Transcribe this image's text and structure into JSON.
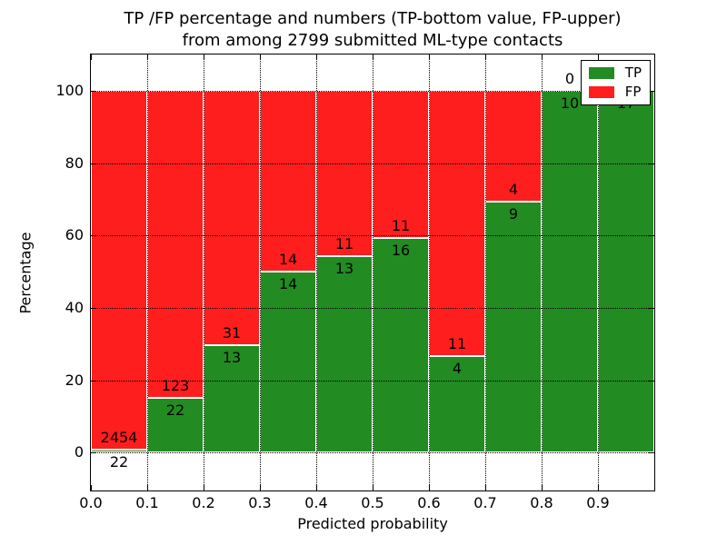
{
  "chart_data": {
    "type": "bar",
    "stacked": true,
    "title_line1": "TP /FP percentage and numbers (TP-bottom value, FP-upper)",
    "title_line2": "from among 2799 submitted ML-type contacts",
    "total_submitted_contacts": 2799,
    "xlabel": "Predicted probability",
    "ylabel": "Percentage",
    "xlim": [
      0.0,
      1.0
    ],
    "ylim": [
      -10.5,
      110
    ],
    "yticks": [
      0,
      20,
      40,
      60,
      80,
      100
    ],
    "xticks": [
      {
        "value": 0.0,
        "label": "0.0"
      },
      {
        "value": 0.1,
        "label": "0.1"
      },
      {
        "value": 0.2,
        "label": "0.2"
      },
      {
        "value": 0.3,
        "label": "0.3"
      },
      {
        "value": 0.4,
        "label": "0.4"
      },
      {
        "value": 0.5,
        "label": "0.5"
      },
      {
        "value": 0.6,
        "label": "0.6"
      },
      {
        "value": 0.7,
        "label": "0.7"
      },
      {
        "value": 0.8,
        "label": "0.8"
      },
      {
        "value": 0.9,
        "label": "0.9"
      }
    ],
    "grid": true,
    "colors": {
      "tp": "#228b22",
      "fp": "#ff1e1e"
    },
    "legend": {
      "position": "upper right",
      "items": [
        {
          "label": "TP",
          "color": "#228b22"
        },
        {
          "label": "FP",
          "color": "#ff1e1e"
        }
      ]
    },
    "bins": [
      {
        "range": [
          0.0,
          0.1
        ],
        "tp": 22,
        "fp": 2454
      },
      {
        "range": [
          0.1,
          0.2
        ],
        "tp": 22,
        "fp": 123
      },
      {
        "range": [
          0.2,
          0.3
        ],
        "tp": 13,
        "fp": 31
      },
      {
        "range": [
          0.3,
          0.4
        ],
        "tp": 14,
        "fp": 14
      },
      {
        "range": [
          0.4,
          0.5
        ],
        "tp": 13,
        "fp": 11
      },
      {
        "range": [
          0.5,
          0.6
        ],
        "tp": 16,
        "fp": 11
      },
      {
        "range": [
          0.6,
          0.7
        ],
        "tp": 4,
        "fp": 11
      },
      {
        "range": [
          0.7,
          0.8
        ],
        "tp": 9,
        "fp": 4
      },
      {
        "range": [
          0.8,
          0.9
        ],
        "tp": 10,
        "fp": 0
      },
      {
        "range": [
          0.9,
          1.0
        ],
        "tp": 17,
        "fp": 0
      }
    ]
  }
}
